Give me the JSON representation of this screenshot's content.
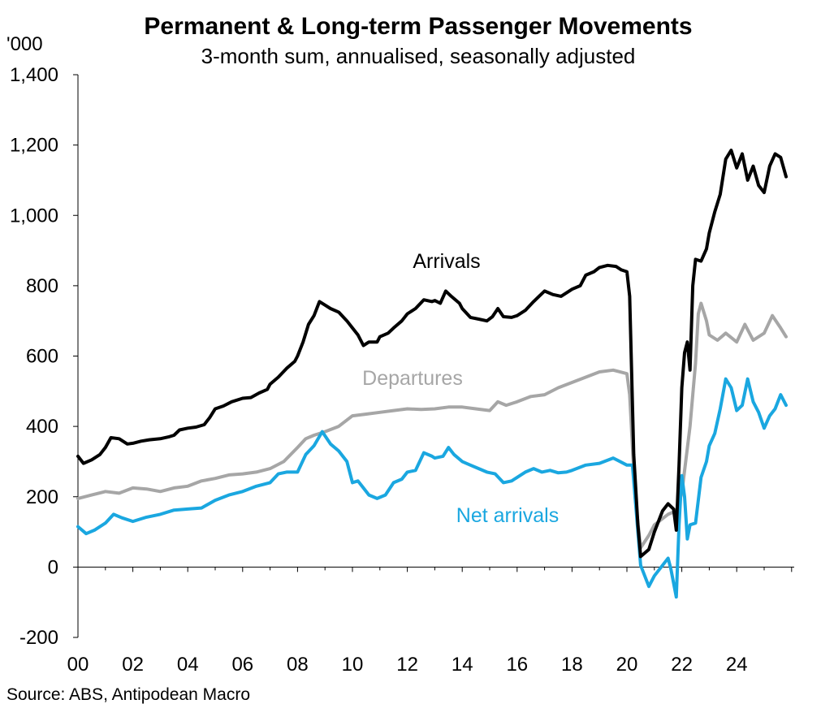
{
  "chart_data": {
    "type": "line",
    "title": "Permanent & Long-term Passenger Movements",
    "subtitle": "3-month sum, annualised, seasonally adjusted",
    "ylabel": "'000",
    "xlabel": "",
    "ylim": [
      -200,
      1400
    ],
    "xlim": [
      2000,
      2026.5
    ],
    "yticks": [
      -200,
      0,
      200,
      400,
      600,
      800,
      1000,
      1200,
      1400
    ],
    "ytick_labels": [
      "-200",
      "0",
      "200",
      "400",
      "600",
      "800",
      "1,000",
      "1,200",
      "1,400"
    ],
    "xticks": [
      2000,
      2002,
      2004,
      2006,
      2008,
      2010,
      2012,
      2014,
      2016,
      2018,
      2020,
      2022,
      2024
    ],
    "xtick_labels": [
      "00",
      "02",
      "04",
      "06",
      "08",
      "10",
      "12",
      "14",
      "16",
      "18",
      "20",
      "22",
      "24"
    ],
    "grid": false,
    "source": "Source: ABS, Antipodean Macro",
    "series": [
      {
        "name": "Arrivals",
        "color": "#000000",
        "points": [
          [
            2000.0,
            315
          ],
          [
            2000.2,
            295
          ],
          [
            2000.5,
            305
          ],
          [
            2000.8,
            320
          ],
          [
            2001.0,
            340
          ],
          [
            2001.2,
            368
          ],
          [
            2001.5,
            365
          ],
          [
            2001.8,
            350
          ],
          [
            2002.0,
            352
          ],
          [
            2002.3,
            358
          ],
          [
            2002.6,
            362
          ],
          [
            2003.0,
            365
          ],
          [
            2003.3,
            370
          ],
          [
            2003.5,
            375
          ],
          [
            2003.7,
            390
          ],
          [
            2004.0,
            395
          ],
          [
            2004.3,
            398
          ],
          [
            2004.6,
            405
          ],
          [
            2004.8,
            425
          ],
          [
            2005.0,
            450
          ],
          [
            2005.3,
            458
          ],
          [
            2005.6,
            470
          ],
          [
            2006.0,
            480
          ],
          [
            2006.3,
            482
          ],
          [
            2006.6,
            495
          ],
          [
            2006.9,
            505
          ],
          [
            2007.0,
            520
          ],
          [
            2007.3,
            540
          ],
          [
            2007.6,
            565
          ],
          [
            2007.9,
            585
          ],
          [
            2008.0,
            600
          ],
          [
            2008.2,
            640
          ],
          [
            2008.4,
            690
          ],
          [
            2008.6,
            715
          ],
          [
            2008.8,
            755
          ],
          [
            2009.0,
            745
          ],
          [
            2009.2,
            735
          ],
          [
            2009.5,
            725
          ],
          [
            2009.8,
            700
          ],
          [
            2010.0,
            680
          ],
          [
            2010.2,
            660
          ],
          [
            2010.4,
            630
          ],
          [
            2010.6,
            640
          ],
          [
            2010.9,
            640
          ],
          [
            2011.0,
            655
          ],
          [
            2011.3,
            665
          ],
          [
            2011.5,
            680
          ],
          [
            2011.8,
            700
          ],
          [
            2012.0,
            720
          ],
          [
            2012.3,
            735
          ],
          [
            2012.6,
            760
          ],
          [
            2012.9,
            755
          ],
          [
            2013.0,
            758
          ],
          [
            2013.2,
            750
          ],
          [
            2013.4,
            785
          ],
          [
            2013.6,
            770
          ],
          [
            2013.9,
            750
          ],
          [
            2014.0,
            735
          ],
          [
            2014.3,
            710
          ],
          [
            2014.6,
            705
          ],
          [
            2014.9,
            700
          ],
          [
            2015.1,
            712
          ],
          [
            2015.3,
            735
          ],
          [
            2015.5,
            712
          ],
          [
            2015.8,
            710
          ],
          [
            2016.0,
            715
          ],
          [
            2016.3,
            730
          ],
          [
            2016.6,
            755
          ],
          [
            2016.8,
            770
          ],
          [
            2017.0,
            785
          ],
          [
            2017.3,
            775
          ],
          [
            2017.6,
            770
          ],
          [
            2017.9,
            785
          ],
          [
            2018.0,
            790
          ],
          [
            2018.3,
            800
          ],
          [
            2018.5,
            830
          ],
          [
            2018.8,
            840
          ],
          [
            2019.0,
            852
          ],
          [
            2019.3,
            858
          ],
          [
            2019.6,
            855
          ],
          [
            2019.8,
            845
          ],
          [
            2020.0,
            840
          ],
          [
            2020.1,
            770
          ],
          [
            2020.25,
            320
          ],
          [
            2020.4,
            120
          ],
          [
            2020.5,
            30
          ],
          [
            2020.8,
            50
          ],
          [
            2021.0,
            100
          ],
          [
            2021.3,
            160
          ],
          [
            2021.5,
            180
          ],
          [
            2021.7,
            165
          ],
          [
            2021.8,
            105
          ],
          [
            2021.9,
            290
          ],
          [
            2022.0,
            510
          ],
          [
            2022.1,
            610
          ],
          [
            2022.2,
            640
          ],
          [
            2022.3,
            560
          ],
          [
            2022.4,
            800
          ],
          [
            2022.5,
            875
          ],
          [
            2022.7,
            870
          ],
          [
            2022.9,
            905
          ],
          [
            2023.0,
            950
          ],
          [
            2023.2,
            1010
          ],
          [
            2023.4,
            1060
          ],
          [
            2023.6,
            1160
          ],
          [
            2023.8,
            1185
          ],
          [
            2024.0,
            1135
          ],
          [
            2024.2,
            1175
          ],
          [
            2024.4,
            1100
          ],
          [
            2024.6,
            1140
          ],
          [
            2024.8,
            1085
          ],
          [
            2025.0,
            1065
          ],
          [
            2025.2,
            1140
          ],
          [
            2025.4,
            1175
          ],
          [
            2025.6,
            1165
          ],
          [
            2025.8,
            1110
          ]
        ]
      },
      {
        "name": "Departures",
        "color": "#a6a6a6",
        "points": [
          [
            2000.0,
            195
          ],
          [
            2000.5,
            205
          ],
          [
            2001.0,
            215
          ],
          [
            2001.5,
            210
          ],
          [
            2002.0,
            225
          ],
          [
            2002.5,
            222
          ],
          [
            2003.0,
            215
          ],
          [
            2003.5,
            225
          ],
          [
            2004.0,
            230
          ],
          [
            2004.5,
            245
          ],
          [
            2005.0,
            252
          ],
          [
            2005.5,
            262
          ],
          [
            2006.0,
            265
          ],
          [
            2006.5,
            270
          ],
          [
            2007.0,
            280
          ],
          [
            2007.5,
            300
          ],
          [
            2008.0,
            340
          ],
          [
            2008.3,
            365
          ],
          [
            2008.6,
            375
          ],
          [
            2009.0,
            385
          ],
          [
            2009.5,
            400
          ],
          [
            2010.0,
            430
          ],
          [
            2010.5,
            435
          ],
          [
            2011.0,
            440
          ],
          [
            2011.5,
            445
          ],
          [
            2012.0,
            450
          ],
          [
            2012.5,
            448
          ],
          [
            2013.0,
            450
          ],
          [
            2013.5,
            455
          ],
          [
            2014.0,
            455
          ],
          [
            2014.5,
            450
          ],
          [
            2015.0,
            445
          ],
          [
            2015.3,
            470
          ],
          [
            2015.6,
            460
          ],
          [
            2016.0,
            470
          ],
          [
            2016.5,
            485
          ],
          [
            2017.0,
            490
          ],
          [
            2017.5,
            510
          ],
          [
            2018.0,
            525
          ],
          [
            2018.5,
            540
          ],
          [
            2019.0,
            555
          ],
          [
            2019.5,
            560
          ],
          [
            2020.0,
            550
          ],
          [
            2020.1,
            490
          ],
          [
            2020.3,
            200
          ],
          [
            2020.5,
            55
          ],
          [
            2020.8,
            90
          ],
          [
            2021.0,
            120
          ],
          [
            2021.5,
            150
          ],
          [
            2021.8,
            160
          ],
          [
            2022.0,
            210
          ],
          [
            2022.3,
            400
          ],
          [
            2022.5,
            580
          ],
          [
            2022.6,
            720
          ],
          [
            2022.7,
            750
          ],
          [
            2022.9,
            700
          ],
          [
            2023.0,
            660
          ],
          [
            2023.3,
            645
          ],
          [
            2023.6,
            665
          ],
          [
            2024.0,
            640
          ],
          [
            2024.3,
            690
          ],
          [
            2024.6,
            645
          ],
          [
            2025.0,
            665
          ],
          [
            2025.3,
            715
          ],
          [
            2025.6,
            680
          ],
          [
            2025.8,
            655
          ]
        ]
      },
      {
        "name": "Net arrivals",
        "color": "#1aa7e0",
        "points": [
          [
            2000.0,
            115
          ],
          [
            2000.3,
            95
          ],
          [
            2000.6,
            105
          ],
          [
            2001.0,
            125
          ],
          [
            2001.3,
            150
          ],
          [
            2001.6,
            140
          ],
          [
            2002.0,
            130
          ],
          [
            2002.5,
            142
          ],
          [
            2003.0,
            150
          ],
          [
            2003.5,
            162
          ],
          [
            2004.0,
            165
          ],
          [
            2004.5,
            168
          ],
          [
            2005.0,
            190
          ],
          [
            2005.5,
            205
          ],
          [
            2006.0,
            215
          ],
          [
            2006.5,
            230
          ],
          [
            2007.0,
            240
          ],
          [
            2007.3,
            265
          ],
          [
            2007.6,
            270
          ],
          [
            2008.0,
            270
          ],
          [
            2008.3,
            320
          ],
          [
            2008.6,
            345
          ],
          [
            2008.9,
            385
          ],
          [
            2009.2,
            350
          ],
          [
            2009.5,
            330
          ],
          [
            2009.8,
            300
          ],
          [
            2010.0,
            240
          ],
          [
            2010.2,
            245
          ],
          [
            2010.4,
            225
          ],
          [
            2010.6,
            205
          ],
          [
            2010.9,
            195
          ],
          [
            2011.2,
            205
          ],
          [
            2011.5,
            240
          ],
          [
            2011.8,
            250
          ],
          [
            2012.0,
            270
          ],
          [
            2012.3,
            275
          ],
          [
            2012.6,
            325
          ],
          [
            2012.9,
            315
          ],
          [
            2013.0,
            310
          ],
          [
            2013.3,
            315
          ],
          [
            2013.5,
            340
          ],
          [
            2013.7,
            320
          ],
          [
            2014.0,
            300
          ],
          [
            2014.3,
            290
          ],
          [
            2014.6,
            280
          ],
          [
            2014.9,
            270
          ],
          [
            2015.2,
            265
          ],
          [
            2015.5,
            240
          ],
          [
            2015.8,
            245
          ],
          [
            2016.0,
            255
          ],
          [
            2016.3,
            270
          ],
          [
            2016.6,
            280
          ],
          [
            2016.9,
            270
          ],
          [
            2017.2,
            275
          ],
          [
            2017.5,
            268
          ],
          [
            2017.8,
            270
          ],
          [
            2018.0,
            275
          ],
          [
            2018.5,
            290
          ],
          [
            2019.0,
            295
          ],
          [
            2019.5,
            310
          ],
          [
            2020.0,
            290
          ],
          [
            2020.2,
            290
          ],
          [
            2020.35,
            150
          ],
          [
            2020.5,
            5
          ],
          [
            2020.8,
            -55
          ],
          [
            2021.0,
            -25
          ],
          [
            2021.3,
            5
          ],
          [
            2021.5,
            25
          ],
          [
            2021.6,
            -5
          ],
          [
            2021.8,
            -85
          ],
          [
            2021.9,
            120
          ],
          [
            2022.0,
            260
          ],
          [
            2022.1,
            200
          ],
          [
            2022.2,
            80
          ],
          [
            2022.3,
            120
          ],
          [
            2022.5,
            125
          ],
          [
            2022.7,
            255
          ],
          [
            2022.9,
            300
          ],
          [
            2023.0,
            345
          ],
          [
            2023.2,
            380
          ],
          [
            2023.4,
            450
          ],
          [
            2023.6,
            535
          ],
          [
            2023.8,
            510
          ],
          [
            2024.0,
            445
          ],
          [
            2024.2,
            460
          ],
          [
            2024.4,
            535
          ],
          [
            2024.6,
            470
          ],
          [
            2024.8,
            440
          ],
          [
            2025.0,
            395
          ],
          [
            2025.2,
            430
          ],
          [
            2025.4,
            450
          ],
          [
            2025.6,
            490
          ],
          [
            2025.8,
            460
          ]
        ]
      }
    ]
  }
}
